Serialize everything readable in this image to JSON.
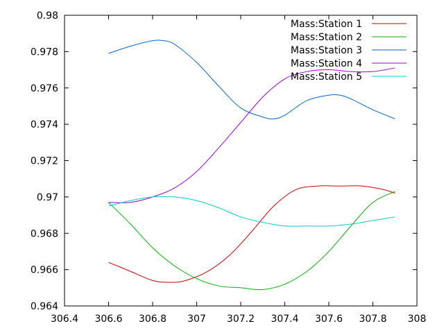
{
  "chart_data": {
    "type": "line",
    "title": "",
    "xlabel": "",
    "ylabel": "",
    "xlim": [
      306.4,
      308
    ],
    "ylim": [
      0.964,
      0.98
    ],
    "x_ticks": [
      "306.4",
      "306.6",
      "306.8",
      "307",
      "307.2",
      "307.4",
      "307.6",
      "307.8",
      "308"
    ],
    "y_ticks": [
      "0.964",
      "0.966",
      "0.968",
      "0.97",
      "0.972",
      "0.974",
      "0.976",
      "0.978",
      "0.98"
    ],
    "grid": false,
    "legend_position": "top-right",
    "series": [
      {
        "name": "Mass:Station 1",
        "color": "#cc0000",
        "x": [
          306.6,
          306.7,
          306.8,
          306.88,
          306.95,
          307.05,
          307.15,
          307.25,
          307.35,
          307.45,
          307.55,
          307.65,
          307.75,
          307.85,
          307.9
        ],
        "y": [
          0.9664,
          0.9659,
          0.9654,
          0.9653,
          0.9654,
          0.9659,
          0.9668,
          0.9681,
          0.9695,
          0.9704,
          0.9706,
          0.9706,
          0.9706,
          0.9704,
          0.9702
        ]
      },
      {
        "name": "Mass:Station 2",
        "color": "#00b000",
        "x": [
          306.6,
          306.7,
          306.8,
          306.9,
          307.0,
          307.1,
          307.2,
          307.3,
          307.4,
          307.5,
          307.6,
          307.7,
          307.8,
          307.9
        ],
        "y": [
          0.9697,
          0.9685,
          0.9672,
          0.9662,
          0.9655,
          0.9651,
          0.965,
          0.9649,
          0.9652,
          0.9659,
          0.967,
          0.9684,
          0.9697,
          0.9703
        ]
      },
      {
        "name": "Mass:Station 3",
        "color": "#0066cc",
        "x": [
          306.6,
          306.7,
          306.8,
          306.85,
          306.9,
          307.0,
          307.1,
          307.2,
          307.3,
          307.35,
          307.4,
          307.5,
          307.6,
          307.65,
          307.7,
          307.8,
          307.9
        ],
        "y": [
          0.9779,
          0.9783,
          0.9786,
          0.9786,
          0.9784,
          0.9774,
          0.9761,
          0.9749,
          0.9744,
          0.9743,
          0.9745,
          0.9753,
          0.9756,
          0.9756,
          0.9754,
          0.9748,
          0.9743
        ]
      },
      {
        "name": "Mass:Station 4",
        "color": "#9900cc",
        "x": [
          306.6,
          306.7,
          306.8,
          306.9,
          307.0,
          307.1,
          307.2,
          307.3,
          307.4,
          307.5,
          307.6,
          307.7,
          307.8,
          307.9
        ],
        "y": [
          0.9697,
          0.9697,
          0.97,
          0.9705,
          0.9714,
          0.9727,
          0.9741,
          0.9755,
          0.9765,
          0.9769,
          0.977,
          0.9769,
          0.9769,
          0.9771
        ]
      },
      {
        "name": "Mass:Station 5",
        "color": "#00cccc",
        "x": [
          306.6,
          306.7,
          306.8,
          306.9,
          307.0,
          307.1,
          307.2,
          307.3,
          307.4,
          307.5,
          307.6,
          307.7,
          307.8,
          307.9
        ],
        "y": [
          0.9695,
          0.9698,
          0.97,
          0.97,
          0.9698,
          0.9694,
          0.9689,
          0.9686,
          0.9684,
          0.9684,
          0.9684,
          0.9685,
          0.9687,
          0.9689
        ]
      }
    ]
  }
}
